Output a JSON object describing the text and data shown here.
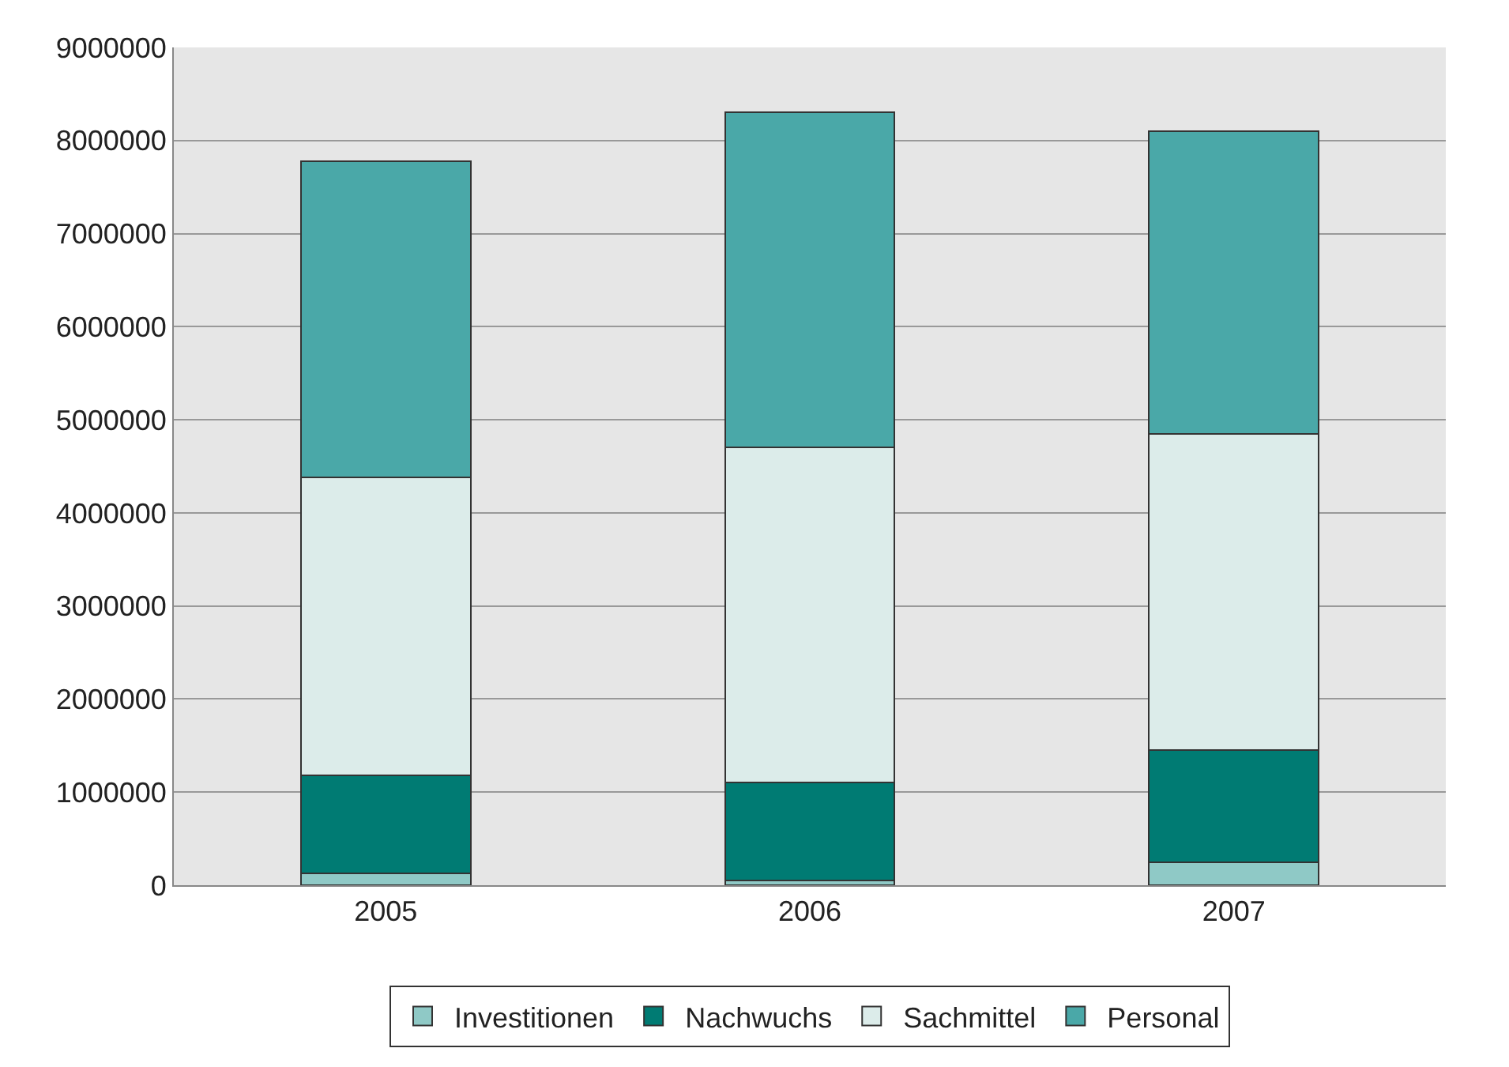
{
  "chart_data": {
    "type": "bar",
    "stacked": true,
    "categories": [
      "2005",
      "2006",
      "2007"
    ],
    "series": [
      {
        "name": "Investitionen",
        "color": "#8fc9c6",
        "values": [
          130000,
          50000,
          250000
        ]
      },
      {
        "name": "Nachwuchs",
        "color": "#007b73",
        "values": [
          1050000,
          1050000,
          1200000
        ]
      },
      {
        "name": "Sachmittel",
        "color": "#dcecea",
        "values": [
          3200000,
          3600000,
          3400000
        ]
      },
      {
        "name": "Personal",
        "color": "#4aa8a8",
        "values": [
          3400000,
          3600000,
          3250000
        ]
      }
    ],
    "ylim": [
      0,
      9000000
    ],
    "yticks": [
      0,
      1000000,
      2000000,
      3000000,
      4000000,
      5000000,
      6000000,
      7000000,
      8000000,
      9000000
    ],
    "grid": "y",
    "legend": "bottom"
  }
}
